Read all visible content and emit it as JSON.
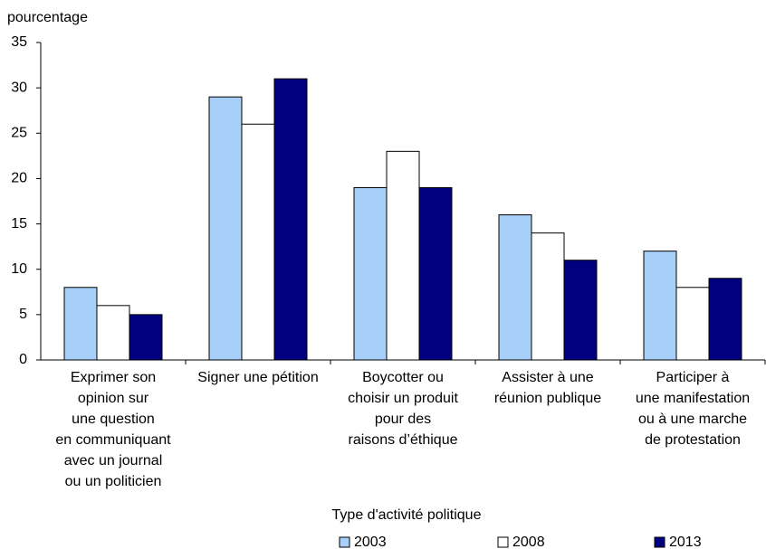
{
  "chart_data": {
    "type": "bar",
    "y_axis_label": "pourcentage",
    "x_axis_label": "Type d'activité politique",
    "categories": [
      [
        "Exprimer son",
        "opinion sur",
        "une question",
        "en communiquant",
        "avec un journal",
        "ou un politicien"
      ],
      [
        "Signer une pétition"
      ],
      [
        "Boycotter ou",
        "choisir un produit",
        "pour des",
        "raisons d’éthique"
      ],
      [
        "Assister à une",
        "réunion publique"
      ],
      [
        "Participer à",
        "une manifestation",
        "ou à une marche",
        "de protestation"
      ]
    ],
    "series": [
      {
        "name": "2003",
        "color": "#a8cff7",
        "values": [
          8,
          29,
          19,
          16,
          12
        ]
      },
      {
        "name": "2008",
        "color": "#ffffff",
        "values": [
          6,
          26,
          23,
          14,
          8
        ]
      },
      {
        "name": "2013",
        "color": "#000080",
        "values": [
          5,
          31,
          19,
          11,
          9
        ]
      }
    ],
    "ylim": [
      0,
      35
    ],
    "yticks": [
      0,
      5,
      10,
      15,
      20,
      25,
      30,
      35
    ],
    "grid": false,
    "legend": "bottom"
  }
}
